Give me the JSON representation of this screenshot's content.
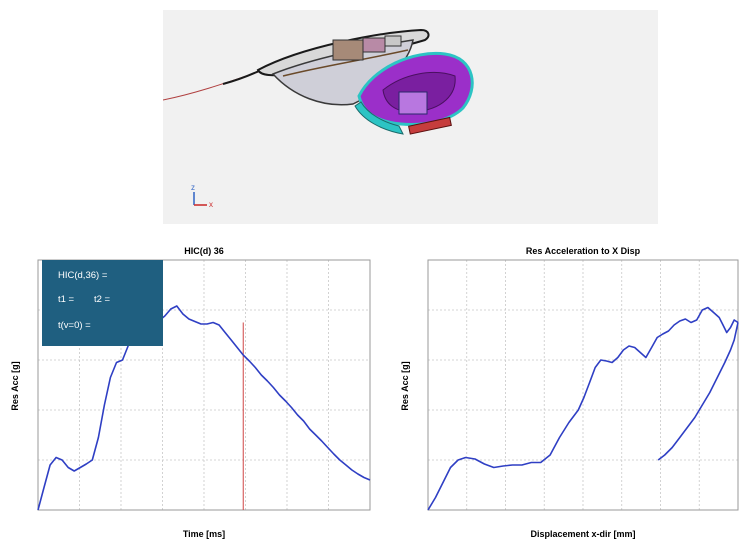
{
  "viewport": {
    "axis_triad": {
      "z": "z",
      "x": "x"
    },
    "colors": {
      "background": "#f1f1f1",
      "housing": "#9b2fc9",
      "lens": "#2cc4c4",
      "frame": "#1a1a1a"
    }
  },
  "hic_box": {
    "lines": [
      "HIC(d,36) =",
      "t1 =",
      "t2 =",
      "t(v=0) ="
    ],
    "color": "#1f5f80"
  },
  "colors": {
    "series": "#2f3fc4",
    "marker": "#d04545",
    "grid": "#c8c8c8"
  },
  "chart_data": [
    {
      "type": "line",
      "title": "HIC(d) 36",
      "xlabel": "Time [ms]",
      "ylabel": "Res Acc [g]",
      "xlim": [
        0,
        33
      ],
      "ylim": [
        0,
        5
      ],
      "grid": true,
      "series": [
        {
          "x": [
            0,
            0.6,
            1.2,
            1.8,
            2.4,
            3.0,
            3.6,
            4.2,
            4.8,
            5.4,
            6.0,
            6.6,
            7.2,
            7.8,
            8.4,
            9.0,
            9.6,
            10.2,
            10.8,
            11.4,
            12.0,
            12.6,
            13.2,
            13.8,
            14.4,
            15.0,
            15.6,
            16.2,
            16.8,
            17.4,
            18.0,
            18.6,
            19.2,
            19.8,
            20.4,
            21.0,
            21.6,
            22.2,
            22.8,
            23.4,
            24.0,
            24.6,
            25.2,
            25.8,
            26.4,
            27.0,
            27.6,
            28.2,
            28.8,
            29.4,
            30.0,
            30.6,
            31.2,
            31.8,
            32.4,
            33.0
          ],
          "y": [
            0.0,
            0.45,
            0.9,
            1.05,
            1.0,
            0.85,
            0.78,
            0.85,
            0.92,
            1.0,
            1.45,
            2.1,
            2.65,
            2.95,
            3.0,
            3.3,
            3.5,
            3.7,
            3.75,
            3.8,
            3.78,
            3.88,
            4.02,
            4.08,
            3.92,
            3.82,
            3.77,
            3.72,
            3.72,
            3.75,
            3.7,
            3.55,
            3.4,
            3.25,
            3.1,
            2.98,
            2.85,
            2.7,
            2.58,
            2.45,
            2.3,
            2.18,
            2.05,
            1.9,
            1.78,
            1.62,
            1.5,
            1.38,
            1.25,
            1.12,
            1.0,
            0.9,
            0.8,
            0.72,
            0.65,
            0.6
          ]
        }
      ],
      "marker_x": 20.4
    },
    {
      "type": "line",
      "title": "Res Acceleration to X Disp",
      "xlabel": "Displacement x-dir [mm]",
      "ylabel": "Res Acc [g]",
      "xlim": [
        0,
        33
      ],
      "ylim": [
        0,
        5
      ],
      "grid": true,
      "series": [
        {
          "x": [
            0,
            0.8,
            1.6,
            2.4,
            3.2,
            4.0,
            5.0,
            6.0,
            7.0,
            8.0,
            9.0,
            10.0,
            11.0,
            12.0,
            13.0,
            14.0,
            15.0,
            16.0,
            16.6,
            17.2,
            17.8,
            18.4,
            19.0,
            19.6,
            20.2,
            20.8,
            21.4,
            22.0,
            22.6,
            23.2,
            23.8,
            24.4,
            25.0,
            25.6,
            26.2,
            26.8,
            27.4,
            28.0,
            28.6,
            29.2,
            29.8,
            30.4,
            31.0,
            31.4,
            31.8,
            32.2,
            32.6,
            33.0
          ],
          "y": [
            0.0,
            0.25,
            0.55,
            0.85,
            1.0,
            1.05,
            1.02,
            0.92,
            0.85,
            0.88,
            0.9,
            0.9,
            0.95,
            0.95,
            1.1,
            1.45,
            1.75,
            2.0,
            2.25,
            2.55,
            2.85,
            3.0,
            2.98,
            2.95,
            3.05,
            3.2,
            3.28,
            3.25,
            3.15,
            3.05,
            3.25,
            3.45,
            3.52,
            3.58,
            3.7,
            3.78,
            3.82,
            3.75,
            3.8,
            4.0,
            4.05,
            3.95,
            3.85,
            3.7,
            3.55,
            3.65,
            3.8,
            3.75
          ]
        },
        {
          "x": [
            24.5,
            25.2,
            26.0,
            26.8,
            27.6,
            28.4,
            29.2,
            30.0,
            30.8,
            31.6,
            32.2,
            32.6,
            33.0
          ],
          "y": [
            1.0,
            1.1,
            1.25,
            1.45,
            1.65,
            1.85,
            2.1,
            2.35,
            2.65,
            2.95,
            3.2,
            3.4,
            3.75
          ]
        }
      ]
    }
  ]
}
